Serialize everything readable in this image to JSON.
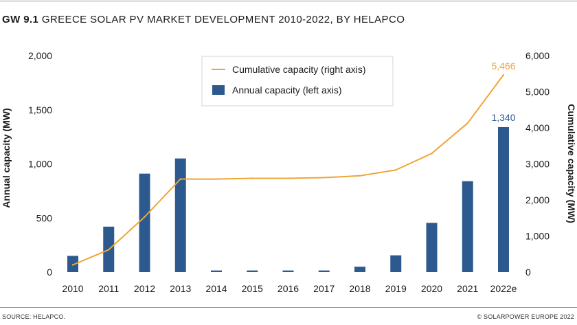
{
  "header": {
    "figure_id": "GW 9.1",
    "title": "GREECE SOLAR PV MARKET DEVELOPMENT 2010-2022, BY HELAPCO"
  },
  "footer": {
    "source": "SOURCE: HELAPCO.",
    "copyright": "© SOLARPOWER EUROPE 2022"
  },
  "colors": {
    "bar": "#2d5a8e",
    "line": "#f0a535",
    "bar_label": "#2d5a8e",
    "line_label": "#f0a535"
  },
  "chart_data": {
    "type": "bar+line",
    "title": "GREECE SOLAR PV MARKET DEVELOPMENT 2010-2022, BY HELAPCO",
    "categories": [
      "2010",
      "2011",
      "2012",
      "2013",
      "2014",
      "2015",
      "2016",
      "2017",
      "2018",
      "2019",
      "2020",
      "2021",
      "2022e"
    ],
    "series": [
      {
        "name": "Annual capacity (left axis)",
        "type": "bar",
        "axis": "left",
        "values": [
          150,
          420,
          910,
          1050,
          15,
          15,
          15,
          15,
          50,
          155,
          455,
          840,
          1340
        ]
      },
      {
        "name": "Cumulative capacity (right axis)",
        "type": "line",
        "axis": "right",
        "values": [
          200,
          620,
          1530,
          2580,
          2580,
          2600,
          2600,
          2620,
          2670,
          2830,
          3290,
          4130,
          5466
        ]
      }
    ],
    "data_labels": {
      "bar_last": "1,340",
      "line_last": "5,466"
    },
    "left_axis": {
      "label": "Annual capacity (MW)",
      "ylim": [
        0,
        2000
      ],
      "ticks": [
        0,
        500,
        1000,
        1500,
        2000
      ],
      "tick_labels": [
        "0",
        "500",
        "1,000",
        "1,500",
        "2,000"
      ]
    },
    "right_axis": {
      "label": "Cumulative capacity (MW)",
      "ylim": [
        0,
        6000
      ],
      "ticks": [
        0,
        1000,
        2000,
        3000,
        4000,
        5000,
        6000
      ],
      "tick_labels": [
        "0",
        "1,000",
        "2,000",
        "3,000",
        "4,000",
        "5,000",
        "6,000"
      ]
    },
    "legend_position": "top-center",
    "grid": false
  }
}
